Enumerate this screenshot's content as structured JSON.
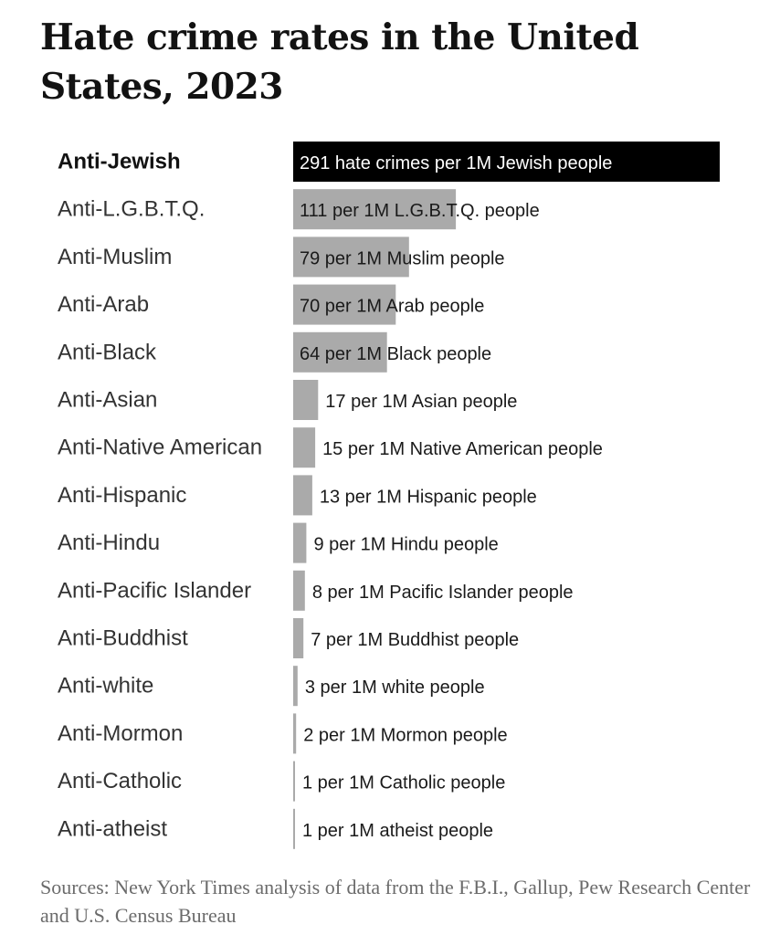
{
  "title": "Hate crime rates in the United States, 2023",
  "source": "Sources: New York Times analysis of data from the F.B.I., Gallup, Pew Research Center and U.S. Census Bureau",
  "colors": {
    "highlight_bar": "#000000",
    "bar": "#aaaaaa"
  },
  "chart_data": {
    "type": "bar",
    "orientation": "horizontal",
    "title": "Hate crime rates in the United States, 2023",
    "highlight": "Anti-Jewish",
    "categories": [
      "Anti-Jewish",
      "Anti-L.G.B.T.Q.",
      "Anti-Muslim",
      "Anti-Arab",
      "Anti-Black",
      "Anti-Asian",
      "Anti-Native American",
      "Anti-Hispanic",
      "Anti-Hindu",
      "Anti-Pacific Islander",
      "Anti-Buddhist",
      "Anti-white",
      "Anti-Mormon",
      "Anti-Catholic",
      "Anti-atheist"
    ],
    "values": [
      291,
      111,
      79,
      70,
      64,
      17,
      15,
      13,
      9,
      8,
      7,
      3,
      2,
      1,
      1
    ],
    "labels": [
      "291 hate crimes per 1M Jewish people",
      "111 per 1M L.G.B.T.Q. people",
      "79 per 1M Muslim people",
      "70 per 1M Arab people",
      "64 per 1M Black people",
      "17 per 1M Asian people",
      "15 per 1M Native American people",
      "13 per 1M Hispanic people",
      "9 per 1M Hindu people",
      "8 per 1M Pacific Islander people",
      "7 per 1M Buddhist people",
      "3 per 1M white people",
      "2 per 1M Mormon people",
      "1 per 1M Catholic people",
      "1 per 1M atheist people"
    ],
    "xlim": [
      0,
      291
    ],
    "grid": false,
    "legend": "none"
  }
}
